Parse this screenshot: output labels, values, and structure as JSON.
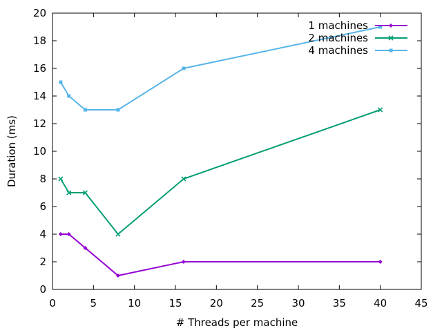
{
  "chart_data": {
    "type": "line",
    "title": "",
    "xlabel": "# Threads per machine",
    "ylabel": "Duration (ms)",
    "xlim": [
      0,
      45
    ],
    "ylim": [
      0,
      20
    ],
    "xticks": [
      0,
      5,
      10,
      15,
      20,
      25,
      30,
      35,
      40,
      45
    ],
    "yticks": [
      0,
      2,
      4,
      6,
      8,
      10,
      12,
      14,
      16,
      18,
      20
    ],
    "grid": false,
    "legend_position": "top-right",
    "series": [
      {
        "name": "1 machines",
        "color": "#9400d3",
        "marker": "diamond",
        "x": [
          1,
          2,
          4,
          8,
          16,
          40
        ],
        "y": [
          4,
          4,
          3,
          1,
          2,
          2
        ]
      },
      {
        "name": "2 machines",
        "color": "#009e73",
        "marker": "cross",
        "x": [
          1,
          2,
          4,
          8,
          16,
          40
        ],
        "y": [
          8,
          7,
          7,
          4,
          8,
          13
        ]
      },
      {
        "name": "4 machines",
        "color": "#56b4e9",
        "marker": "square",
        "x": [
          1,
          2,
          4,
          8,
          16,
          40
        ],
        "y": [
          15,
          14,
          13,
          13,
          16,
          19
        ]
      }
    ]
  }
}
